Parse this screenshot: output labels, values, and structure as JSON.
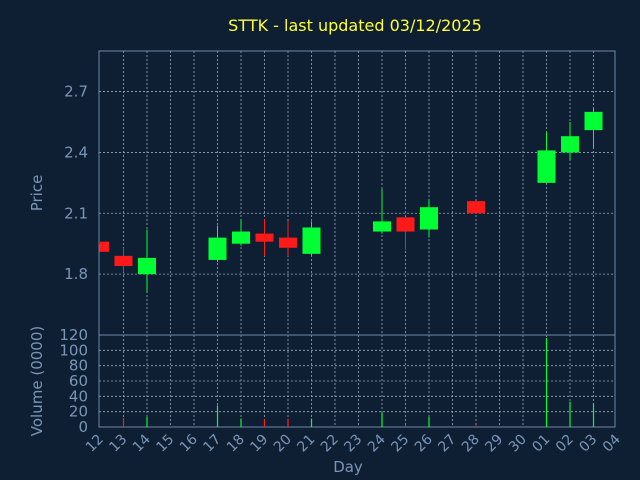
{
  "chart_data": {
    "type": "candlestick",
    "title": "STTK - last updated 03/12/2025",
    "xlabel": "Day",
    "ylabel": "Price",
    "volume_label": "Volume (0000)",
    "x_ticks": [
      "12",
      "13",
      "14",
      "15",
      "16",
      "17",
      "18",
      "19",
      "20",
      "21",
      "22",
      "23",
      "24",
      "25",
      "26",
      "27",
      "28",
      "29",
      "30",
      "01",
      "02",
      "03",
      "04"
    ],
    "y_ticks": [
      "1.8",
      "2.1",
      "2.4",
      "2.7"
    ],
    "ylim": [
      1.5,
      2.9
    ],
    "volume_ticks": [
      "0",
      "20",
      "40",
      "60",
      "80",
      "100",
      "120"
    ],
    "volume_ylim": [
      0,
      120
    ],
    "grid": true,
    "candles": [
      {
        "x": "12",
        "open": 1.96,
        "close": 1.91,
        "high": 1.95,
        "low": 1.91,
        "volume": 0
      },
      {
        "x": "13",
        "open": 1.89,
        "close": 1.84,
        "high": 1.93,
        "low": 1.81,
        "volume": 12
      },
      {
        "x": "14",
        "open": 1.8,
        "close": 1.88,
        "high": 2.02,
        "low": 1.71,
        "volume": 13
      },
      {
        "x": "17",
        "open": 1.87,
        "close": 1.98,
        "high": 2.04,
        "low": 1.86,
        "volume": 28
      },
      {
        "x": "18",
        "open": 1.95,
        "close": 2.01,
        "high": 2.07,
        "low": 1.94,
        "volume": 11
      },
      {
        "x": "19",
        "open": 2.0,
        "close": 1.96,
        "high": 2.07,
        "low": 1.89,
        "volume": 10
      },
      {
        "x": "20",
        "open": 1.98,
        "close": 1.93,
        "high": 2.06,
        "low": 1.89,
        "volume": 11
      },
      {
        "x": "21",
        "open": 1.9,
        "close": 2.03,
        "high": 2.06,
        "low": 1.89,
        "volume": 11
      },
      {
        "x": "24",
        "open": 2.01,
        "close": 2.06,
        "high": 2.22,
        "low": 2.0,
        "volume": 19
      },
      {
        "x": "25",
        "open": 2.08,
        "close": 2.01,
        "high": 2.08,
        "low": 1.92,
        "volume": 3
      },
      {
        "x": "26",
        "open": 2.02,
        "close": 2.13,
        "high": 2.17,
        "low": 1.98,
        "volume": 13
      },
      {
        "x": "28",
        "open": 2.16,
        "close": 2.1,
        "high": 2.16,
        "low": 2.1,
        "volume": 2
      },
      {
        "x": "01",
        "open": 2.25,
        "close": 2.41,
        "high": 2.5,
        "low": 2.25,
        "volume": 116
      },
      {
        "x": "02",
        "open": 2.4,
        "close": 2.48,
        "high": 2.55,
        "low": 2.36,
        "volume": 33
      },
      {
        "x": "03",
        "open": 2.51,
        "close": 2.6,
        "high": 2.62,
        "low": 2.42,
        "volume": 31
      }
    ],
    "colors": {
      "background": "#0f1f33",
      "plot_border": "#6e87a8",
      "grid": "#9aa7b8",
      "up": "#00ff33",
      "down": "#ff1a1a",
      "title": "#ffff33",
      "text": "#7a95b8"
    }
  }
}
